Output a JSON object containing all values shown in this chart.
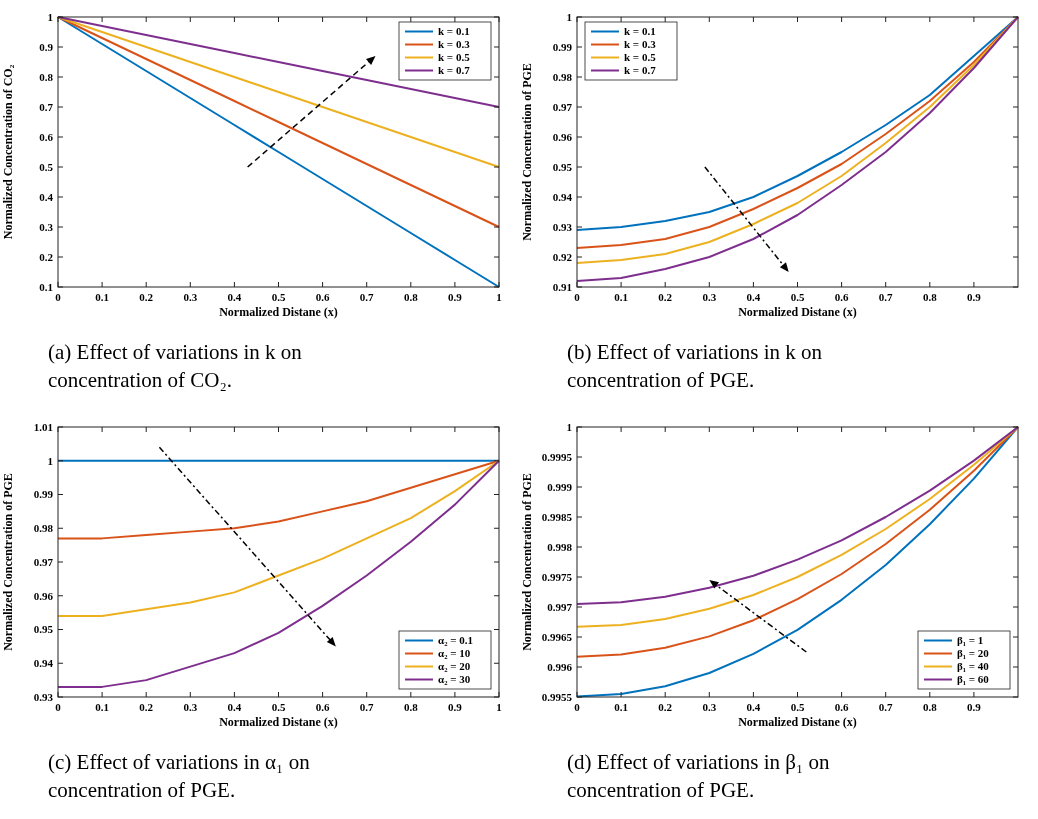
{
  "chart_data": [
    {
      "type": "line",
      "ylabel": "Normalized Concentration of CO₂",
      "xlabel": "Normalized Distane (x)",
      "x": [
        0,
        0.1,
        0.2,
        0.3,
        0.4,
        0.5,
        0.6,
        0.7,
        0.8,
        0.9,
        1
      ],
      "xlim": [
        0,
        1
      ],
      "xticks": [
        0,
        0.1,
        0.2,
        0.3,
        0.4,
        0.5,
        0.6,
        0.7,
        0.8,
        0.9,
        1
      ],
      "ylim": [
        0.1,
        1
      ],
      "yticks": [
        0.1,
        0.2,
        0.3,
        0.4,
        0.5,
        0.6,
        0.7,
        0.8,
        0.9,
        1
      ],
      "legend": "top right",
      "annotations": [
        "(a) Effect of variations in k on concentration of CO₂."
      ],
      "series": [
        {
          "name": "k = 0.1",
          "color": "#0072bd",
          "values": [
            1,
            0.91,
            0.82,
            0.73,
            0.64,
            0.55,
            0.46,
            0.37,
            0.28,
            0.19,
            0.1
          ]
        },
        {
          "name": "k = 0.3",
          "color": "#d95319",
          "values": [
            1,
            0.93,
            0.86,
            0.79,
            0.72,
            0.65,
            0.58,
            0.51,
            0.44,
            0.37,
            0.3
          ]
        },
        {
          "name": "k = 0.5",
          "color": "#edb120",
          "values": [
            1,
            0.95,
            0.9,
            0.85,
            0.8,
            0.75,
            0.7,
            0.65,
            0.6,
            0.55,
            0.5
          ]
        },
        {
          "name": "k = 0.7",
          "color": "#7e2f8e",
          "values": [
            1,
            0.97,
            0.94,
            0.91,
            0.88,
            0.85,
            0.82,
            0.79,
            0.76,
            0.73,
            0.7
          ]
        }
      ]
    },
    {
      "type": "line",
      "ylabel": "Normalized Concentration of PGE",
      "xlabel": "Normalized Distane (x)",
      "x": [
        0,
        0.1,
        0.2,
        0.3,
        0.4,
        0.5,
        0.6,
        0.7,
        0.8,
        0.9,
        1
      ],
      "xlim": [
        0,
        1
      ],
      "xticks": [
        0,
        0.1,
        0.2,
        0.3,
        0.4,
        0.5,
        0.6,
        0.7,
        0.8,
        0.9
      ],
      "ylim": [
        0.91,
        1
      ],
      "yticks": [
        0.91,
        0.92,
        0.93,
        0.94,
        0.95,
        0.96,
        0.97,
        0.98,
        0.99,
        1
      ],
      "legend": "top left",
      "annotations": [
        "(b) Effect of variations in k on concentration of PGE."
      ],
      "series": [
        {
          "name": "k = 0.1",
          "color": "#0072bd",
          "values": [
            0.929,
            0.93,
            0.932,
            0.935,
            0.94,
            0.947,
            0.955,
            0.964,
            0.974,
            0.987,
            1
          ]
        },
        {
          "name": "k = 0.3",
          "color": "#d95319",
          "values": [
            0.923,
            0.924,
            0.926,
            0.93,
            0.936,
            0.943,
            0.951,
            0.961,
            0.972,
            0.985,
            1
          ]
        },
        {
          "name": "k = 0.5",
          "color": "#edb120",
          "values": [
            0.918,
            0.919,
            0.921,
            0.925,
            0.931,
            0.938,
            0.947,
            0.958,
            0.97,
            0.984,
            1
          ]
        },
        {
          "name": "k = 0.7",
          "color": "#7e2f8e",
          "values": [
            0.912,
            0.913,
            0.916,
            0.92,
            0.926,
            0.934,
            0.944,
            0.955,
            0.968,
            0.983,
            1
          ]
        }
      ]
    },
    {
      "type": "line",
      "ylabel": "Normalized Concentration of PGE",
      "xlabel": "Normalized Distane (x)",
      "x": [
        0,
        0.1,
        0.2,
        0.3,
        0.4,
        0.5,
        0.6,
        0.7,
        0.8,
        0.9,
        1
      ],
      "xlim": [
        0,
        1
      ],
      "xticks": [
        0,
        0.1,
        0.2,
        0.3,
        0.4,
        0.5,
        0.6,
        0.7,
        0.8,
        0.9,
        1
      ],
      "ylim": [
        0.93,
        1.01
      ],
      "yticks": [
        0.93,
        0.94,
        0.95,
        0.96,
        0.97,
        0.98,
        0.99,
        1,
        1.01
      ],
      "legend": "bottom right",
      "annotations": [
        "(c) Effect of variations in α₁ on concentration of PGE."
      ],
      "series": [
        {
          "name": "α₂ = 0.1",
          "color": "#0072bd",
          "values": [
            1,
            1,
            1,
            1,
            1,
            1,
            1,
            1,
            1,
            1,
            1
          ]
        },
        {
          "name": "α₂ = 10",
          "color": "#d95319",
          "values": [
            0.977,
            0.977,
            0.978,
            0.979,
            0.98,
            0.982,
            0.985,
            0.988,
            0.992,
            0.996,
            1
          ]
        },
        {
          "name": "α₂ = 20",
          "color": "#edb120",
          "values": [
            0.954,
            0.954,
            0.956,
            0.958,
            0.961,
            0.966,
            0.971,
            0.977,
            0.983,
            0.991,
            1
          ]
        },
        {
          "name": "α₂ = 30",
          "color": "#7e2f8e",
          "values": [
            0.933,
            0.933,
            0.935,
            0.939,
            0.943,
            0.949,
            0.957,
            0.966,
            0.976,
            0.987,
            1
          ]
        }
      ]
    },
    {
      "type": "line",
      "ylabel": "Normalized Concentration of PGE",
      "xlabel": "Normalized Distane (x)",
      "x": [
        0,
        0.1,
        0.2,
        0.3,
        0.4,
        0.5,
        0.6,
        0.7,
        0.8,
        0.9,
        1
      ],
      "xlim": [
        0,
        1
      ],
      "xticks": [
        0,
        0.1,
        0.2,
        0.3,
        0.4,
        0.5,
        0.6,
        0.7,
        0.8,
        0.9
      ],
      "ylim": [
        0.9955,
        1
      ],
      "yticks": [
        0.9955,
        0.996,
        0.9965,
        0.997,
        0.9975,
        0.998,
        0.9985,
        0.999,
        0.9995,
        1
      ],
      "legend": "bottom right",
      "annotations": [
        "(d) Effect of variations in β₁ on concentration of PGE."
      ],
      "series": [
        {
          "name": "β₁ = 1",
          "color": "#0072bd",
          "values": [
            0.99551,
            0.99555,
            0.99568,
            0.9959,
            0.99622,
            0.99662,
            0.99712,
            0.9977,
            0.99838,
            0.99914,
            1
          ]
        },
        {
          "name": "β₁ = 20",
          "color": "#d95319",
          "values": [
            0.99617,
            0.99621,
            0.99632,
            0.99651,
            0.99678,
            0.99713,
            0.99755,
            0.99805,
            0.99862,
            0.99927,
            1
          ]
        },
        {
          "name": "β₁ = 40",
          "color": "#edb120",
          "values": [
            0.99667,
            0.9967,
            0.9968,
            0.99697,
            0.9972,
            0.9975,
            0.99787,
            0.9983,
            0.9988,
            0.99937,
            1
          ]
        },
        {
          "name": "β₁ = 60",
          "color": "#7e2f8e",
          "values": [
            0.99705,
            0.99708,
            0.99717,
            0.99732,
            0.99752,
            0.99779,
            0.99811,
            0.9985,
            0.99894,
            0.99944,
            1
          ]
        }
      ]
    }
  ]
}
